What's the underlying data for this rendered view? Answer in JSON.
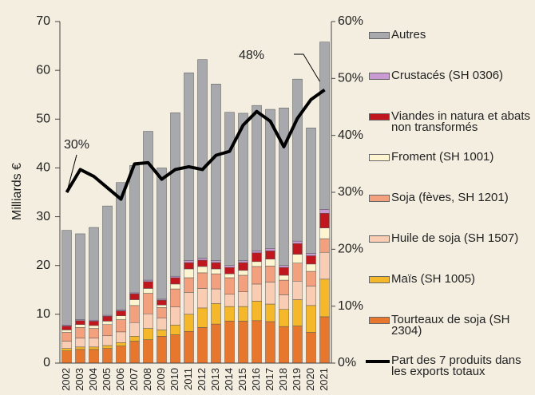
{
  "chart_data": {
    "type": "stacked_bar_line",
    "y_label": "Milliards €",
    "categories": [
      "2002",
      "2003",
      "2004",
      "2005",
      "2006",
      "2007",
      "2008",
      "2009",
      "2010",
      "2011",
      "2012",
      "2013",
      "2014",
      "2015",
      "2016",
      "2017",
      "2018",
      "2019",
      "2020",
      "2021"
    ],
    "ylim": [
      0,
      70
    ],
    "yticks": [
      0,
      10,
      20,
      30,
      40,
      50,
      60,
      70
    ],
    "y2lim": [
      0,
      60
    ],
    "y2ticks": [
      {
        "value": 0,
        "label": "0%"
      },
      {
        "value": 10,
        "label": "10%"
      },
      {
        "value": 20,
        "label": "20%"
      },
      {
        "value": 30,
        "label": "30%"
      },
      {
        "value": 40,
        "label": "40%"
      },
      {
        "value": 50,
        "label": "50%"
      },
      {
        "value": 60,
        "label": "60%"
      }
    ],
    "series": [
      {
        "name": "Tourteaux de soja (SH 2304)",
        "color": "#e8772e",
        "values": [
          2.5,
          2.8,
          2.8,
          3.0,
          3.5,
          4.5,
          4.8,
          5.5,
          5.8,
          6.5,
          7.3,
          8.0,
          8.6,
          8.6,
          8.7,
          8.5,
          7.5,
          7.6,
          6.3,
          9.5
        ]
      },
      {
        "name": "Maïs (SH 1005)",
        "color": "#f5b82a",
        "values": [
          0.5,
          0.5,
          0.5,
          0.6,
          0.7,
          1.0,
          2.3,
          1.3,
          2.0,
          3.5,
          4.0,
          4.2,
          3.0,
          3.0,
          4.0,
          3.6,
          3.5,
          5.4,
          5.5,
          7.7
        ]
      },
      {
        "name": "Huile de soja (SH 1507)",
        "color": "#f9cdb4",
        "values": [
          1.5,
          1.8,
          1.8,
          2.0,
          2.2,
          2.8,
          3.0,
          2.4,
          3.7,
          4.5,
          4.0,
          3.0,
          2.5,
          3.0,
          3.5,
          4.5,
          3.0,
          3.8,
          4.0,
          5.5
        ]
      },
      {
        "name": "Soja (fèves, SH 1201)",
        "color": "#f3a07e",
        "values": [
          1.8,
          2.2,
          2.0,
          2.3,
          2.5,
          3.5,
          4.2,
          2.2,
          3.7,
          3.0,
          3.2,
          3.1,
          3.4,
          3.4,
          3.6,
          3.3,
          3.0,
          3.7,
          3.0,
          2.8
        ]
      },
      {
        "name": "Froment (SH 1001)",
        "color": "#fdf5cf",
        "values": [
          0.5,
          0.6,
          0.6,
          0.7,
          0.8,
          1.2,
          1.0,
          0.5,
          1.0,
          1.8,
          1.3,
          1.0,
          0.8,
          1.0,
          1.0,
          1.4,
          1.0,
          1.8,
          1.5,
          2.2
        ]
      },
      {
        "name": "Viandes in natura  et abats non transformés",
        "color": "#c0161e",
        "values": [
          0.8,
          0.8,
          0.9,
          1.0,
          1.0,
          1.2,
          1.4,
          1.0,
          1.3,
          1.3,
          1.3,
          1.3,
          1.3,
          1.6,
          1.8,
          1.7,
          1.6,
          2.2,
          1.7,
          3.0
        ]
      },
      {
        "name": "Crustacés (SH 0306)",
        "color": "#c99bd2",
        "values": [
          0.2,
          0.2,
          0.2,
          0.2,
          0.2,
          0.2,
          0.3,
          0.2,
          0.3,
          0.4,
          0.4,
          0.4,
          0.4,
          0.4,
          0.4,
          0.5,
          0.4,
          0.5,
          0.5,
          0.8
        ]
      },
      {
        "name": "Autres",
        "color": "#a7a9ac",
        "values": [
          19.4,
          17.6,
          19.0,
          22.4,
          26.1,
          26.1,
          30.5,
          26.9,
          33.5,
          38.5,
          40.7,
          36.2,
          31.4,
          30.2,
          29.8,
          28.5,
          32.3,
          33.2,
          25.7,
          34.3
        ]
      },
      {
        "name": "Part des 7 produits dans les exports totaux",
        "color": "#000000",
        "axis": "y2",
        "line": true,
        "values": [
          30,
          34,
          32.8,
          30.8,
          28.8,
          35,
          35.2,
          32.3,
          34,
          34.5,
          34,
          36.5,
          37.2,
          41.8,
          44.2,
          42.5,
          38,
          43,
          46.3,
          48
        ]
      }
    ],
    "annotations": [
      {
        "text": "30%"
      },
      {
        "text": "48%"
      }
    ]
  }
}
